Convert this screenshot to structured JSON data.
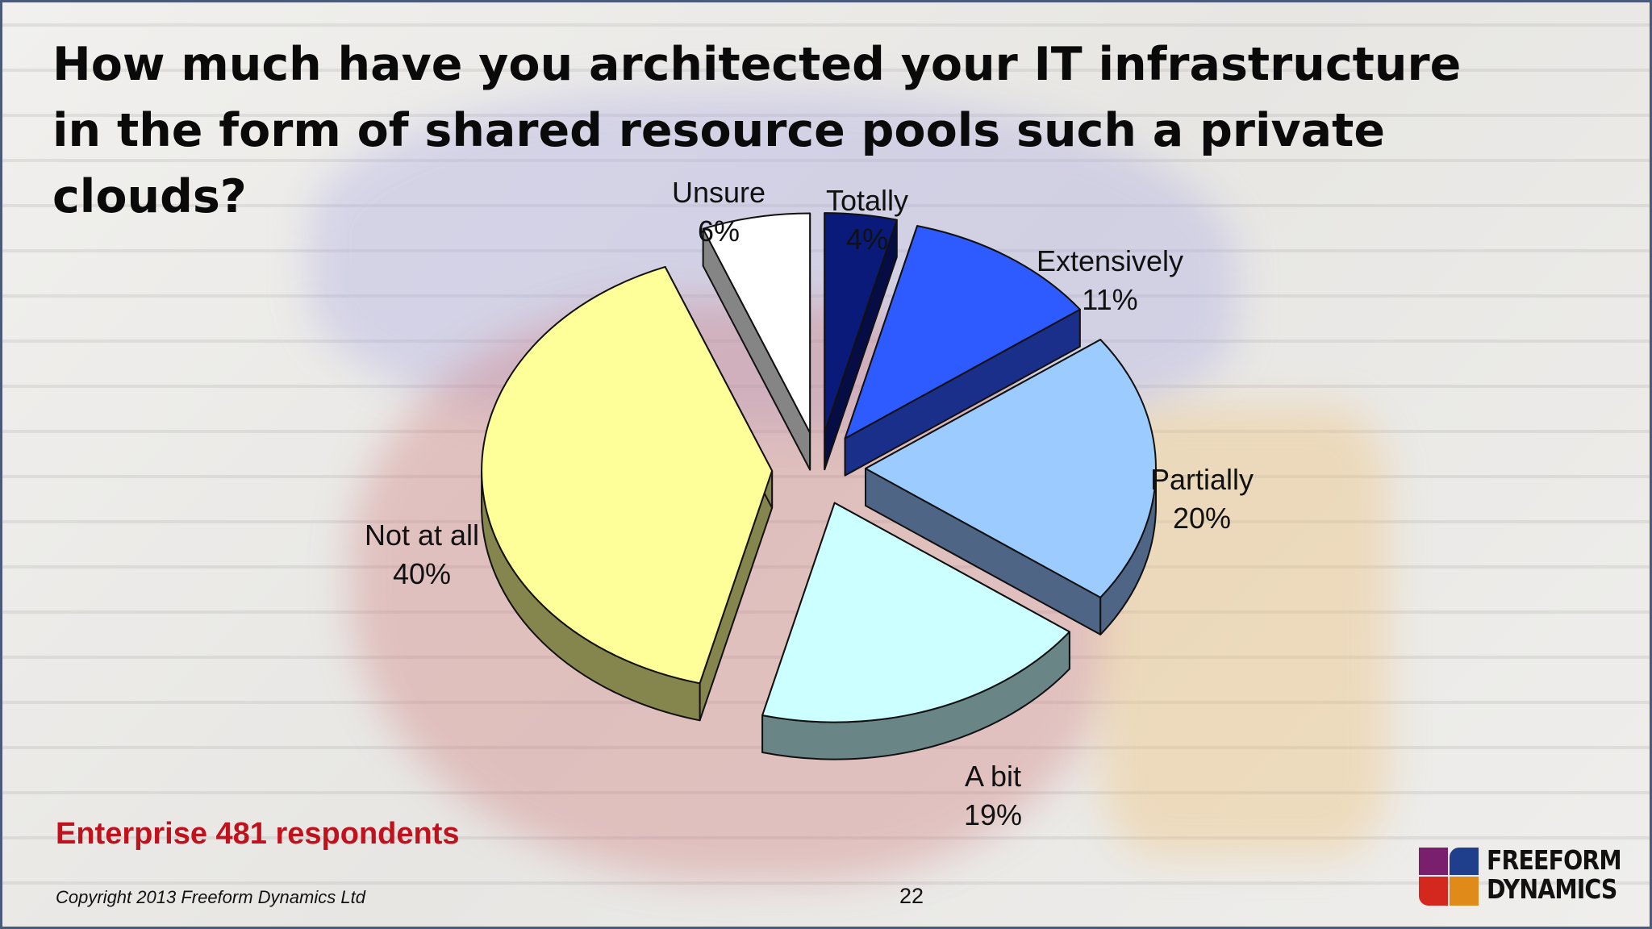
{
  "title": "How much have you architected your IT infrastructure in the form of shared resource pools such a private clouds?",
  "chart_data": {
    "type": "pie",
    "title": "",
    "style": "3d-exploded",
    "slices": [
      {
        "label": "Totally",
        "value": 4,
        "value_label": "4%",
        "color": "#0a1a7a",
        "side_color": "#050d44"
      },
      {
        "label": "Extensively",
        "value": 11,
        "value_label": "11%",
        "color": "#2e5bff",
        "side_color": "#1a2f8a"
      },
      {
        "label": "Partially",
        "value": 20,
        "value_label": "20%",
        "color": "#9ccbff",
        "side_color": "#4e6585"
      },
      {
        "label": "A bit",
        "value": 19,
        "value_label": "19%",
        "color": "#ccffff",
        "side_color": "#6a8585"
      },
      {
        "label": "Not at all",
        "value": 40,
        "value_label": "40%",
        "color": "#ffff99",
        "side_color": "#85854e"
      },
      {
        "label": "Unsure",
        "value": 6,
        "value_label": "6%",
        "color": "#ffffff",
        "side_color": "#858585"
      }
    ]
  },
  "footer": {
    "respondents": "Enterprise 481 respondents",
    "copyright": "Copyright 2013 Freeform Dynamics Ltd",
    "page_number": "22"
  },
  "logo": {
    "line1": "FREEFORM",
    "line2": "DYNAMICS",
    "colors": [
      "#7a1f6e",
      "#1f3f8c",
      "#d4281e",
      "#e08a1a"
    ]
  }
}
